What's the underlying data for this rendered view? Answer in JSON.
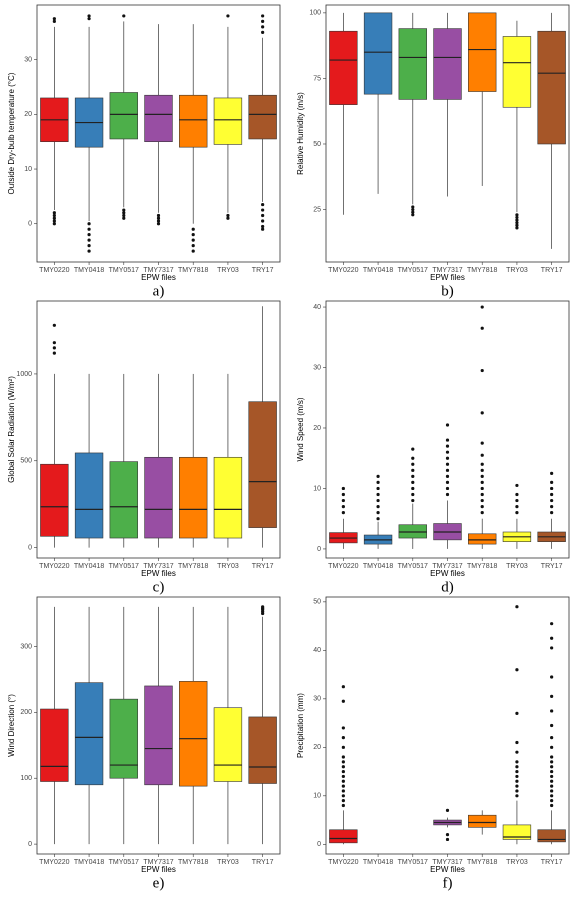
{
  "chart_data": [
    {
      "type": "box",
      "caption": "a)",
      "x_label": "EPW files",
      "y_label": "Outside Dry-bulb temperature (°C)",
      "categories": [
        "TMY0220",
        "TMY0418",
        "TMY0517",
        "TMY7317",
        "TMY7818",
        "TRY03",
        "TRY17"
      ],
      "colors": [
        "#e41a1c",
        "#377eb8",
        "#4daf4a",
        "#984ea3",
        "#ff7f00",
        "#ffff33",
        "#a65628"
      ],
      "ylim": [
        -7,
        40
      ],
      "yticks": [
        0,
        10,
        20,
        30
      ],
      "boxes": [
        {
          "whisker_low": 2.5,
          "q1": 15,
          "median": 19,
          "q3": 23,
          "whisker_high": 36,
          "outliers": [
            37,
            37.5,
            2,
            1.5,
            1,
            0.5,
            0
          ]
        },
        {
          "whisker_low": 0.5,
          "q1": 14,
          "median": 18.5,
          "q3": 23,
          "whisker_high": 36,
          "outliers": [
            37.5,
            38,
            0,
            -1,
            -2,
            -3,
            -4,
            -5
          ]
        },
        {
          "whisker_low": 3,
          "q1": 15.5,
          "median": 20,
          "q3": 24,
          "whisker_high": 37,
          "outliers": [
            38,
            2.5,
            2,
            1.5,
            1
          ]
        },
        {
          "whisker_low": 2,
          "q1": 15,
          "median": 20,
          "q3": 23.5,
          "whisker_high": 36.5,
          "outliers": [
            1.5,
            1,
            0.5,
            0
          ]
        },
        {
          "whisker_low": 0,
          "q1": 14,
          "median": 19,
          "q3": 23.5,
          "whisker_high": 36.5,
          "outliers": [
            -1,
            -2,
            -3,
            -4,
            -5
          ]
        },
        {
          "whisker_low": 2,
          "q1": 14.5,
          "median": 19,
          "q3": 23,
          "whisker_high": 36,
          "outliers": [
            38,
            1.5,
            1
          ]
        },
        {
          "whisker_low": 4,
          "q1": 15.5,
          "median": 20,
          "q3": 23.5,
          "whisker_high": 34,
          "outliers": [
            35,
            36,
            37,
            38,
            3.5,
            2.5,
            1.5,
            0.5,
            -0.5,
            -1
          ]
        }
      ]
    },
    {
      "type": "box",
      "caption": "b)",
      "x_label": "EPW files",
      "y_label": "Relative Humidity (m/s)",
      "categories": [
        "TMY0220",
        "TMY0418",
        "TMY0517",
        "TMY7317",
        "TMY7818",
        "TRY03",
        "TRY17"
      ],
      "colors": [
        "#e41a1c",
        "#377eb8",
        "#4daf4a",
        "#984ea3",
        "#ff7f00",
        "#ffff33",
        "#a65628"
      ],
      "ylim": [
        5,
        103
      ],
      "yticks": [
        25,
        50,
        75,
        100
      ],
      "boxes": [
        {
          "whisker_low": 23,
          "q1": 65,
          "median": 82,
          "q3": 93,
          "whisker_high": 100,
          "outliers": []
        },
        {
          "whisker_low": 31,
          "q1": 69,
          "median": 85,
          "q3": 100,
          "whisker_high": 100,
          "outliers": []
        },
        {
          "whisker_low": 27,
          "q1": 67,
          "median": 83,
          "q3": 94,
          "whisker_high": 100,
          "outliers": [
            26,
            25,
            24,
            23
          ]
        },
        {
          "whisker_low": 30,
          "q1": 67,
          "median": 83,
          "q3": 94,
          "whisker_high": 100,
          "outliers": []
        },
        {
          "whisker_low": 34,
          "q1": 70,
          "median": 86,
          "q3": 100,
          "whisker_high": 100,
          "outliers": []
        },
        {
          "whisker_low": 24,
          "q1": 64,
          "median": 81,
          "q3": 91,
          "whisker_high": 97,
          "outliers": [
            23,
            22,
            21,
            20,
            19,
            18
          ]
        },
        {
          "whisker_low": 10,
          "q1": 50,
          "median": 77,
          "q3": 93,
          "whisker_high": 100,
          "outliers": []
        }
      ]
    },
    {
      "type": "box",
      "caption": "c)",
      "x_label": "EPW files",
      "y_label": "Global Solar Radiation (W/m²)",
      "categories": [
        "TMY0220",
        "TMY0418",
        "TMY0517",
        "TMY7317",
        "TMY7818",
        "TRY03",
        "TRY17"
      ],
      "colors": [
        "#e41a1c",
        "#377eb8",
        "#4daf4a",
        "#984ea3",
        "#ff7f00",
        "#ffff33",
        "#a65628"
      ],
      "ylim": [
        -60,
        1420
      ],
      "yticks": [
        0,
        500,
        1000
      ],
      "boxes": [
        {
          "whisker_low": 0,
          "q1": 65,
          "median": 235,
          "q3": 480,
          "whisker_high": 1000,
          "outliers": [
            1120,
            1150,
            1180,
            1280
          ]
        },
        {
          "whisker_low": 0,
          "q1": 55,
          "median": 220,
          "q3": 545,
          "whisker_high": 1000,
          "outliers": []
        },
        {
          "whisker_low": 0,
          "q1": 55,
          "median": 235,
          "q3": 495,
          "whisker_high": 1000,
          "outliers": []
        },
        {
          "whisker_low": 0,
          "q1": 55,
          "median": 220,
          "q3": 520,
          "whisker_high": 1000,
          "outliers": []
        },
        {
          "whisker_low": 0,
          "q1": 55,
          "median": 220,
          "q3": 520,
          "whisker_high": 1000,
          "outliers": []
        },
        {
          "whisker_low": 0,
          "q1": 55,
          "median": 220,
          "q3": 520,
          "whisker_high": 1000,
          "outliers": []
        },
        {
          "whisker_low": 0,
          "q1": 115,
          "median": 380,
          "q3": 840,
          "whisker_high": 1390,
          "outliers": []
        }
      ]
    },
    {
      "type": "box",
      "caption": "d)",
      "x_label": "EPW files",
      "y_label": "Wind Speed (m/s)",
      "categories": [
        "TMY0220",
        "TMY0418",
        "TMY0517",
        "TMY7317",
        "TMY7818",
        "TRY03",
        "TRY17"
      ],
      "colors": [
        "#e41a1c",
        "#377eb8",
        "#4daf4a",
        "#984ea3",
        "#ff7f00",
        "#ffff33",
        "#a65628"
      ],
      "ylim": [
        -1.5,
        41
      ],
      "yticks": [
        0,
        10,
        20,
        30,
        40
      ],
      "boxes": [
        {
          "whisker_low": 0,
          "q1": 1,
          "median": 1.8,
          "q3": 2.7,
          "whisker_high": 5,
          "outliers": [
            6,
            7,
            8,
            9,
            10
          ]
        },
        {
          "whisker_low": 0,
          "q1": 0.8,
          "median": 1.5,
          "q3": 2.3,
          "whisker_high": 4.5,
          "outliers": [
            5,
            6,
            7,
            8,
            9,
            10,
            11,
            12
          ]
        },
        {
          "whisker_low": 0,
          "q1": 1.8,
          "median": 2.8,
          "q3": 4,
          "whisker_high": 7.5,
          "outliers": [
            8,
            9,
            10,
            11,
            12,
            13,
            14,
            15,
            16.5
          ]
        },
        {
          "whisker_low": 0,
          "q1": 1.5,
          "median": 2.8,
          "q3": 4.2,
          "whisker_high": 8,
          "outliers": [
            9,
            10,
            11,
            12,
            13,
            14,
            15,
            16,
            17,
            18,
            20.5
          ]
        },
        {
          "whisker_low": 0,
          "q1": 0.8,
          "median": 1.5,
          "q3": 2.5,
          "whisker_high": 5,
          "outliers": [
            6,
            7,
            8,
            9,
            10,
            11,
            12,
            13,
            14,
            15.5,
            17.5,
            22.5,
            29.5,
            36.5,
            40
          ]
        },
        {
          "whisker_low": 0,
          "q1": 1.2,
          "median": 2,
          "q3": 2.8,
          "whisker_high": 5,
          "outliers": [
            6,
            7,
            8,
            9,
            10.5
          ]
        },
        {
          "whisker_low": 0,
          "q1": 1.2,
          "median": 2,
          "q3": 2.8,
          "whisker_high": 5,
          "outliers": [
            6,
            7,
            8,
            9,
            10,
            11,
            12.5
          ]
        }
      ]
    },
    {
      "type": "box",
      "caption": "e)",
      "x_label": "EPW files",
      "y_label": "Wind Direction (°)",
      "categories": [
        "TMY0220",
        "TMY0418",
        "TMY0517",
        "TMY7317",
        "TMY7818",
        "TRY03",
        "TRY17"
      ],
      "colors": [
        "#e41a1c",
        "#377eb8",
        "#4daf4a",
        "#984ea3",
        "#ff7f00",
        "#ffff33",
        "#a65628"
      ],
      "ylim": [
        -15,
        375
      ],
      "yticks": [
        0,
        100,
        200,
        300
      ],
      "boxes": [
        {
          "whisker_low": 0,
          "q1": 95,
          "median": 118,
          "q3": 205,
          "whisker_high": 360,
          "outliers": []
        },
        {
          "whisker_low": 0,
          "q1": 90,
          "median": 162,
          "q3": 245,
          "whisker_high": 360,
          "outliers": []
        },
        {
          "whisker_low": 0,
          "q1": 100,
          "median": 120,
          "q3": 220,
          "whisker_high": 360,
          "outliers": []
        },
        {
          "whisker_low": 0,
          "q1": 90,
          "median": 145,
          "q3": 240,
          "whisker_high": 360,
          "outliers": []
        },
        {
          "whisker_low": 0,
          "q1": 88,
          "median": 160,
          "q3": 247,
          "whisker_high": 360,
          "outliers": []
        },
        {
          "whisker_low": 0,
          "q1": 95,
          "median": 120,
          "q3": 207,
          "whisker_high": 360,
          "outliers": []
        },
        {
          "whisker_low": 0,
          "q1": 92,
          "median": 117,
          "q3": 193,
          "whisker_high": 345,
          "outliers": [
            350,
            353,
            356,
            358,
            360
          ]
        }
      ]
    },
    {
      "type": "box",
      "caption": "f)",
      "x_label": "EPW files",
      "y_label": "Precipitation (mm)",
      "categories": [
        "TMY0220",
        "TMY0418",
        "TMY0517",
        "TMY7317",
        "TMY7818",
        "TRY03",
        "TRY17"
      ],
      "colors": [
        "#e41a1c",
        "#377eb8",
        "#4daf4a",
        "#984ea3",
        "#ff7f00",
        "#ffff33",
        "#a65628"
      ],
      "ylim": [
        -2,
        51
      ],
      "yticks": [
        0,
        10,
        20,
        30,
        40,
        50
      ],
      "boxes": [
        {
          "whisker_low": 0,
          "q1": 0.3,
          "median": 1.2,
          "q3": 3,
          "whisker_high": 7,
          "outliers": [
            8,
            9,
            10,
            11,
            12,
            13,
            14,
            15,
            16,
            17,
            18,
            20,
            22,
            24,
            29.5,
            32.5
          ]
        },
        null,
        null,
        {
          "whisker_low": 3.5,
          "q1": 4,
          "median": 4.5,
          "q3": 5,
          "whisker_high": 5.5,
          "outliers": [
            7,
            2,
            1
          ]
        },
        {
          "whisker_low": 2,
          "q1": 3.5,
          "median": 4.5,
          "q3": 6,
          "whisker_high": 7,
          "outliers": []
        },
        {
          "whisker_low": 0,
          "q1": 1,
          "median": 1.5,
          "q3": 4,
          "whisker_high": 9,
          "outliers": [
            10,
            11,
            12,
            13,
            14,
            15,
            16,
            17,
            19,
            21,
            27,
            36,
            49
          ]
        },
        {
          "whisker_low": 0,
          "q1": 0.5,
          "median": 1,
          "q3": 3,
          "whisker_high": 7,
          "outliers": [
            8,
            9,
            10,
            11,
            12,
            13,
            14,
            15,
            16,
            17,
            18,
            20,
            22,
            24.5,
            27.5,
            30.5,
            34.5,
            40.5,
            42.5,
            45.5
          ]
        }
      ]
    }
  ]
}
